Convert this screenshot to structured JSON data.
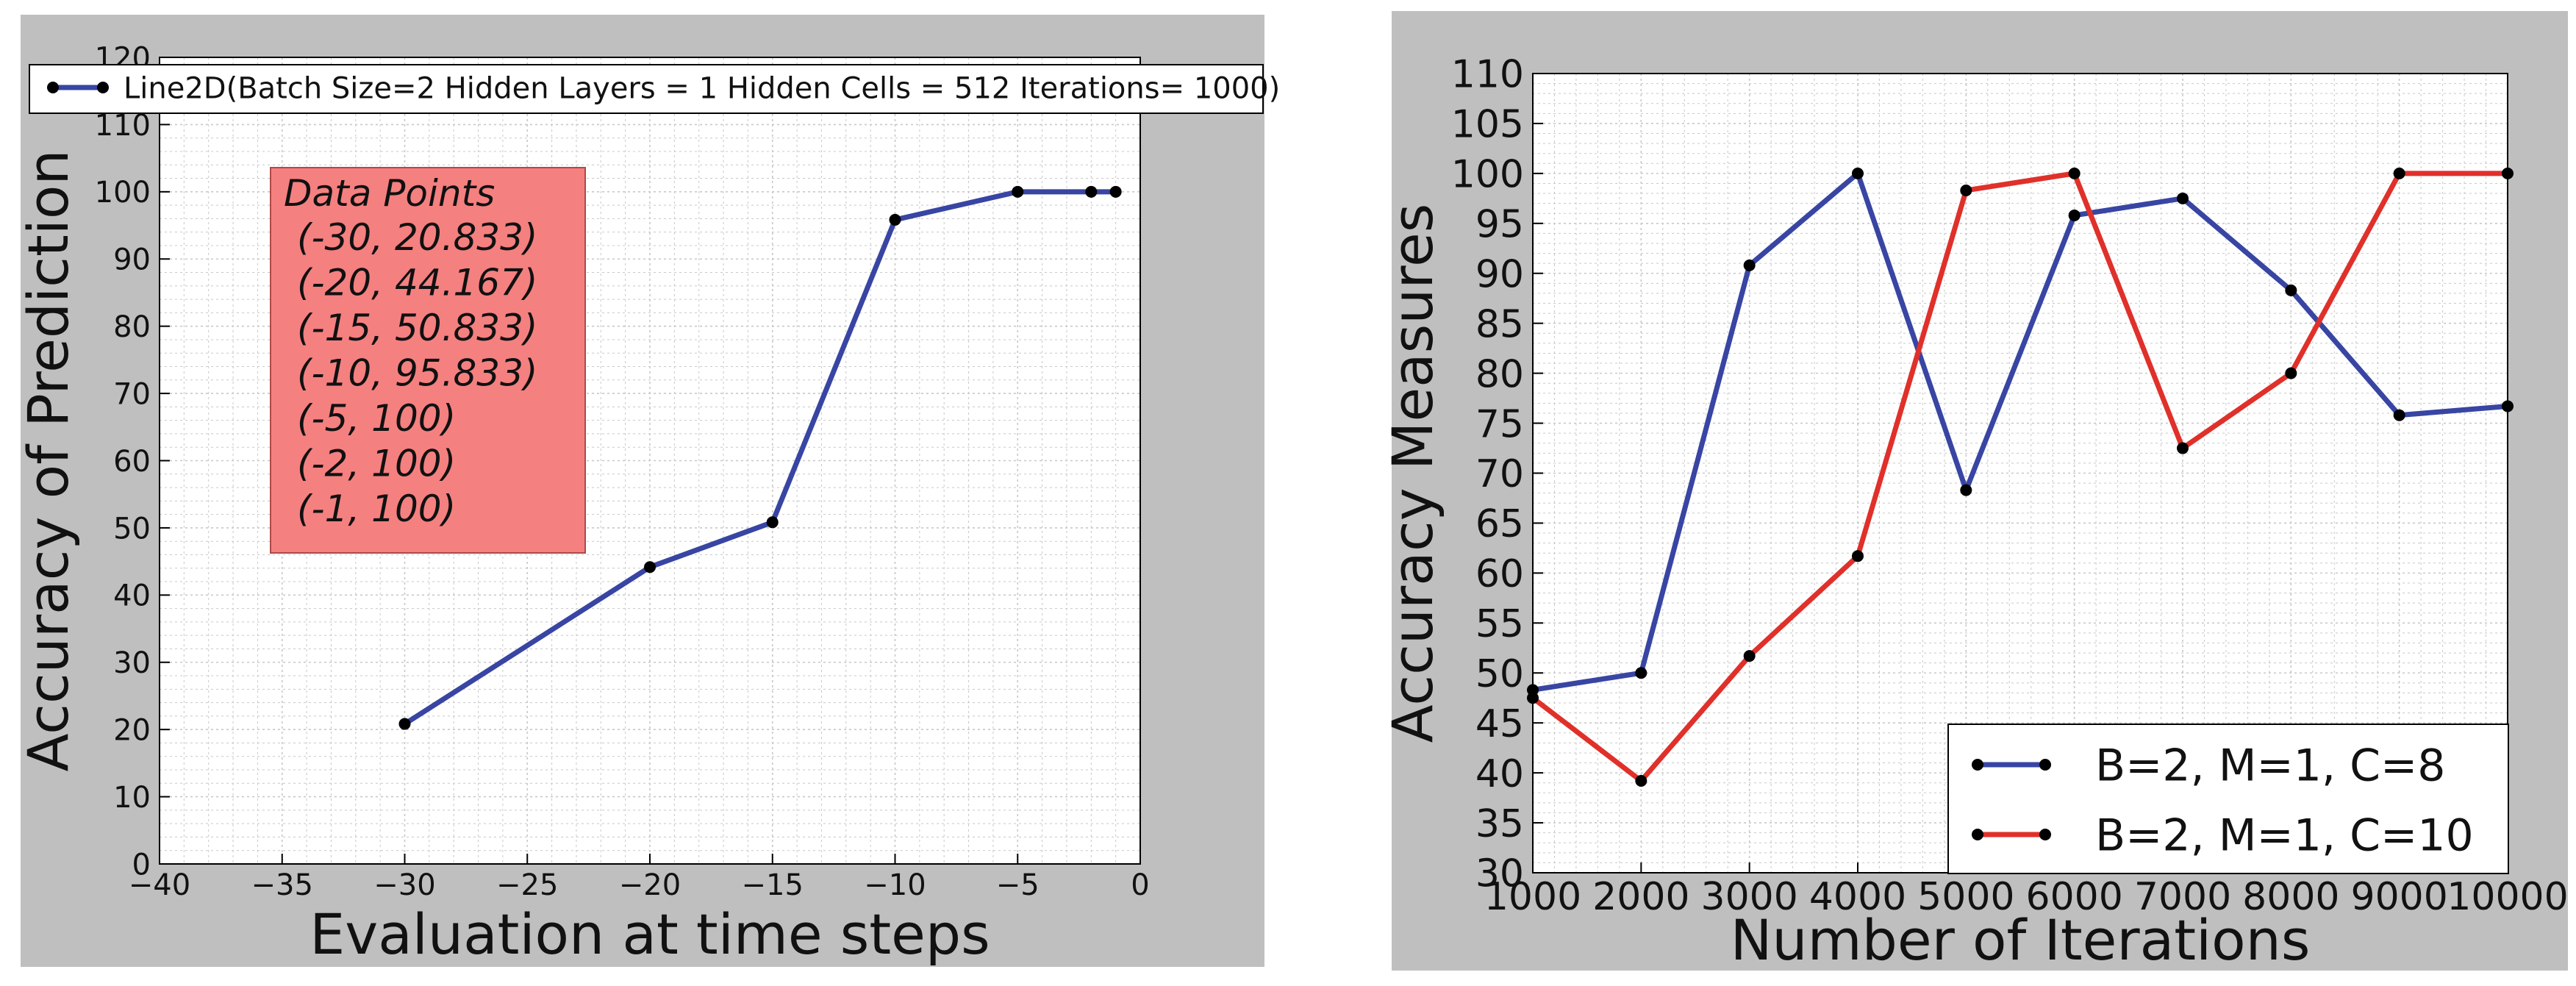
{
  "colors": {
    "frame_bg": "#bfbfbf",
    "plot_bg": "#ffffff",
    "blue_series": "#3845a3",
    "red_series": "#e0302a",
    "marker": "#000000",
    "annotation_fill": "#f58080",
    "annotation_border": "#b04848",
    "grid": "#c8c8c8"
  },
  "chart_data": [
    {
      "type": "line",
      "title": "",
      "xlabel": "Evaluation at time steps",
      "ylabel": "Accuracy of Prediction",
      "xlim": [
        -40,
        0
      ],
      "ylim": [
        0,
        120
      ],
      "xticks": [
        -40,
        -35,
        -30,
        -25,
        -20,
        -15,
        -10,
        -5,
        0
      ],
      "xtick_labels": [
        "−40",
        "−35",
        "−30",
        "−25",
        "−20",
        "−15",
        "−10",
        "−5",
        "0"
      ],
      "yticks": [
        0,
        10,
        20,
        30,
        40,
        50,
        60,
        70,
        80,
        90,
        100,
        110,
        120
      ],
      "ytick_labels": [
        "0",
        "10",
        "20",
        "30",
        "40",
        "50",
        "60",
        "70",
        "80",
        "90",
        "100",
        "110",
        "120"
      ],
      "grid": true,
      "legend_position": "top",
      "series": [
        {
          "name": "Line2D(Batch Size=2 Hidden Layers = 1 Hidden Cells = 512 Iterations= 1000)",
          "color_key": "blue_series",
          "x": [
            -30,
            -20,
            -15,
            -10,
            -5,
            -2,
            -1
          ],
          "y": [
            20.833,
            44.167,
            50.833,
            95.833,
            100,
            100,
            100
          ]
        }
      ],
      "annotation": {
        "title": "Data Points",
        "lines": [
          "(-30, 20.833)",
          "(-20, 44.167)",
          "(-15, 50.833)",
          "(-10, 95.833)",
          "(-5, 100)",
          "(-2, 100)",
          "(-1, 100)"
        ]
      }
    },
    {
      "type": "line",
      "title": "",
      "xlabel": "Number of Iterations",
      "ylabel": "Accuracy Measures",
      "xlim": [
        1000,
        10000
      ],
      "ylim": [
        30,
        110
      ],
      "xticks": [
        1000,
        2000,
        3000,
        4000,
        5000,
        6000,
        7000,
        8000,
        9000,
        10000
      ],
      "xtick_labels": [
        "1000",
        "2000",
        "3000",
        "4000",
        "5000",
        "6000",
        "7000",
        "8000",
        "9000",
        "10000"
      ],
      "yticks": [
        30,
        35,
        40,
        45,
        50,
        55,
        60,
        65,
        70,
        75,
        80,
        85,
        90,
        95,
        100,
        105,
        110
      ],
      "ytick_labels": [
        "30",
        "35",
        "40",
        "45",
        "50",
        "55",
        "60",
        "65",
        "70",
        "75",
        "80",
        "85",
        "90",
        "95",
        "100",
        "105",
        "110"
      ],
      "grid": true,
      "legend_position": "bottom-right",
      "series": [
        {
          "name": "B=2, M=1, C=8",
          "color_key": "blue_series",
          "x": [
            1000,
            2000,
            3000,
            4000,
            5000,
            6000,
            7000,
            8000,
            9000,
            10000
          ],
          "y": [
            48.3,
            50,
            90.8,
            100,
            68.3,
            95.8,
            97.5,
            88.3,
            75.8,
            76.7
          ]
        },
        {
          "name": "B=2, M=1, C=10",
          "color_key": "red_series",
          "x": [
            1000,
            2000,
            3000,
            4000,
            5000,
            6000,
            7000,
            8000,
            9000,
            10000
          ],
          "y": [
            47.5,
            39.2,
            51.7,
            61.7,
            98.3,
            100,
            72.5,
            80,
            100,
            100
          ]
        }
      ]
    }
  ]
}
